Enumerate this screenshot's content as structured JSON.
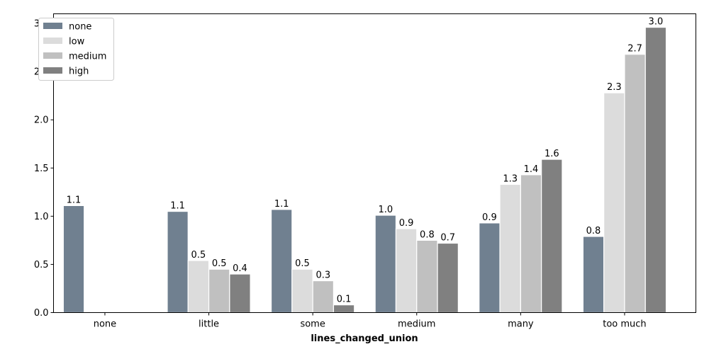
{
  "chart_data": {
    "type": "bar",
    "xlabel": "lines_changed_union",
    "ylabel": "",
    "ylim": [
      0,
      3.1
    ],
    "yticks": [
      "0.0",
      "0.5",
      "1.0",
      "1.5",
      "2.0",
      "2.5",
      "3.0"
    ],
    "categories": [
      "none",
      "little",
      "some",
      "medium",
      "many",
      "too much"
    ],
    "series": [
      {
        "name": "none",
        "color": "#708090",
        "values": [
          1.11,
          1.05,
          1.07,
          1.01,
          0.93,
          0.79
        ],
        "labels": [
          "1.1",
          "1.1",
          "1.1",
          "1.0",
          "0.9",
          "0.8"
        ]
      },
      {
        "name": "low",
        "color": "#dcdcdc",
        "values": [
          null,
          0.54,
          0.45,
          0.87,
          1.33,
          2.28
        ],
        "labels": [
          "",
          "0.5",
          "0.5",
          "0.9",
          "1.3",
          "2.3"
        ]
      },
      {
        "name": "medium",
        "color": "#c0c0c0",
        "values": [
          null,
          0.45,
          0.33,
          0.75,
          1.43,
          2.68
        ],
        "labels": [
          "",
          "0.5",
          "0.3",
          "0.8",
          "1.4",
          "2.7"
        ]
      },
      {
        "name": "high",
        "color": "#808080",
        "values": [
          null,
          0.4,
          0.08,
          0.72,
          1.59,
          2.96
        ],
        "labels": [
          "",
          "0.4",
          "0.1",
          "0.7",
          "1.6",
          "3.0"
        ]
      }
    ],
    "legend_position": "top-left",
    "grid": false
  }
}
